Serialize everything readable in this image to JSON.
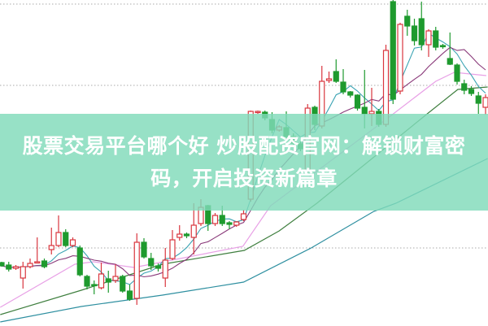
{
  "banner": {
    "title_line1": "股票交易平台哪个好 炒股配资官网：解锁财富密",
    "title_line2": "码，开启投资新篇章"
  },
  "colors": {
    "up": "#d9363e",
    "down": "#1e9a2e",
    "ma_fast": "#3aa3b3",
    "ma_slow": "#8a3a7a",
    "pink_line": "#e8a0e6",
    "green_line": "#3f7f3f",
    "blue_line": "#2e8fa0",
    "banner": "#80dab9"
  },
  "chart_data": {
    "type": "candlestick",
    "title": "",
    "xlabel": "",
    "ylabel": "",
    "ylim": [
      0,
      100
    ],
    "grid": "horizontal dotted",
    "legend": "none",
    "candle_format": [
      "open",
      "high",
      "low",
      "close"
    ],
    "candles": [
      [
        19.25,
        19.5,
        18,
        18.25
      ],
      [
        18.5,
        19.5,
        16.5,
        17.25
      ],
      [
        17.5,
        18.5,
        17,
        18
      ],
      [
        14.5,
        19.5,
        11.25,
        18
      ],
      [
        18,
        20.5,
        17.5,
        19
      ],
      [
        19.25,
        27,
        19,
        19.5
      ],
      [
        19.75,
        20.5,
        17.5,
        18
      ],
      [
        23.25,
        30,
        21.75,
        24.5
      ],
      [
        24.5,
        33.75,
        24,
        28.5
      ],
      [
        28.5,
        29.5,
        24,
        24.5
      ],
      [
        24.5,
        27,
        24,
        26.25
      ],
      [
        23.75,
        24.5,
        15,
        15.5
      ],
      [
        15,
        15.5,
        11,
        12
      ],
      [
        12.5,
        13.75,
        9.5,
        12.25
      ],
      [
        11.5,
        19.25,
        11,
        15.75
      ],
      [
        14.25,
        16.75,
        10,
        13.25
      ],
      [
        13.75,
        18.75,
        13,
        15
      ],
      [
        15,
        15.5,
        10,
        10.5
      ],
      [
        10.5,
        12.5,
        7.5,
        8
      ],
      [
        8.25,
        28.25,
        6.25,
        25.5
      ],
      [
        25.5,
        26.75,
        20.5,
        21
      ],
      [
        20.5,
        22.25,
        17,
        18.25
      ],
      [
        18.25,
        19,
        16.5,
        17.5
      ],
      [
        14.5,
        23.75,
        11.75,
        20
      ],
      [
        20.5,
        29.25,
        20,
        26.25
      ],
      [
        27,
        30.75,
        26,
        28
      ],
      [
        28,
        28.5,
        26.75,
        27.5
      ],
      [
        27,
        37.5,
        21.75,
        30.75
      ],
      [
        31.25,
        38.75,
        30.5,
        36.25
      ],
      [
        36.75,
        37,
        29,
        31.25
      ],
      [
        31.25,
        34.5,
        30.5,
        33.75
      ],
      [
        33.75,
        36.75,
        30.5,
        31.25
      ],
      [
        31.5,
        32,
        29.5,
        31
      ],
      [
        30.75,
        32,
        30.25,
        31.75
      ],
      [
        32.5,
        35.5,
        32,
        34.25
      ],
      [
        38.75,
        66,
        38,
        65.75
      ],
      [
        65.5,
        66,
        65,
        65.75
      ],
      [
        65.5,
        66,
        63,
        63.75
      ],
      [
        63.25,
        65.5,
        59,
        60
      ],
      [
        60,
        61.5,
        59.5,
        61
      ],
      [
        60.75,
        65.75,
        57,
        58
      ],
      [
        58,
        59,
        55,
        56
      ],
      [
        55.75,
        56.5,
        53.5,
        54.25
      ],
      [
        47.5,
        68,
        47,
        66.75
      ],
      [
        67,
        67.5,
        60,
        61.75
      ],
      [
        61.25,
        79.75,
        60.5,
        75
      ],
      [
        75.25,
        78,
        74.5,
        75.75
      ],
      [
        78,
        81.75,
        74.5,
        75
      ],
      [
        74.75,
        78.75,
        71,
        71.75
      ],
      [
        71.75,
        72,
        70,
        70.75
      ],
      [
        70.75,
        71,
        66,
        66.75
      ],
      [
        67,
        78.5,
        60.5,
        65
      ],
      [
        65,
        73,
        61.25,
        65.75
      ],
      [
        65.75,
        66.5,
        61,
        61.75
      ],
      [
        61.75,
        86.25,
        61,
        84.5
      ],
      [
        99.5,
        100,
        68,
        69.5
      ],
      [
        72,
        93,
        71,
        92.5
      ],
      [
        95,
        97,
        89,
        92
      ],
      [
        92,
        94.25,
        86,
        87.5
      ],
      [
        94.25,
        99.5,
        84.5,
        86.25
      ],
      [
        86.25,
        91,
        82.5,
        90.5
      ],
      [
        90.5,
        91.75,
        84.5,
        85.5
      ],
      [
        86,
        86.5,
        85,
        85.75
      ],
      [
        82,
        90,
        80,
        80.25
      ],
      [
        80,
        80.5,
        74,
        75
      ],
      [
        74.25,
        75.5,
        71,
        72.25
      ],
      [
        72.5,
        73.5,
        70.5,
        71.25
      ],
      [
        70.5,
        71.75,
        65,
        68.25
      ],
      [
        67,
        71,
        64.75,
        70
      ]
    ],
    "moving_average_periods": [
      5,
      10
    ],
    "lines": [
      {
        "color_key": "pink_line",
        "points": [
          [
            -0.2,
            5.5
          ],
          [
            10.3,
            18.75
          ],
          [
            12.9,
            19.5
          ],
          [
            18.6,
            17.75
          ],
          [
            33.9,
            24.25
          ],
          [
            37.8,
            36.75
          ],
          [
            54,
            63.25
          ],
          [
            61,
            75
          ],
          [
            63.6,
            77.75
          ],
          [
            68.1,
            76.75
          ]
        ]
      },
      {
        "color_key": "green_line",
        "points": [
          [
            -0.2,
            3.25
          ],
          [
            11.2,
            10.75
          ],
          [
            22.6,
            18.75
          ],
          [
            34.1,
            23
          ],
          [
            39,
            29
          ],
          [
            44.3,
            37.5
          ],
          [
            59.8,
            65
          ],
          [
            64.1,
            72.5
          ],
          [
            68.3,
            73.25
          ]
        ]
      },
      {
        "color_key": "blue_line",
        "points": [
          [
            -0.2,
            1
          ],
          [
            11.2,
            5.75
          ],
          [
            22.6,
            9.25
          ],
          [
            34,
            13.25
          ],
          [
            43.5,
            23.75
          ],
          [
            52.3,
            35
          ],
          [
            55.4,
            37.5
          ],
          [
            68.3,
            51.25
          ]
        ]
      }
    ]
  }
}
